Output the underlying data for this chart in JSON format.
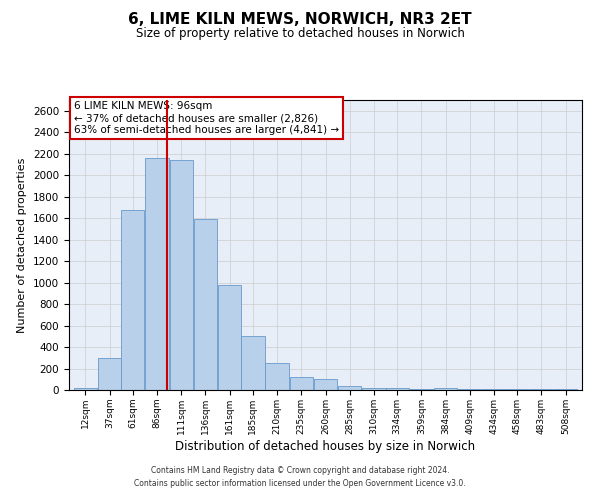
{
  "title": "6, LIME KILN MEWS, NORWICH, NR3 2ET",
  "subtitle": "Size of property relative to detached houses in Norwich",
  "xlabel": "Distribution of detached houses by size in Norwich",
  "ylabel": "Number of detached properties",
  "footer_line1": "Contains HM Land Registry data © Crown copyright and database right 2024.",
  "footer_line2": "Contains public sector information licensed under the Open Government Licence v3.0.",
  "annotation_line1": "6 LIME KILN MEWS: 96sqm",
  "annotation_line2": "← 37% of detached houses are smaller (2,826)",
  "annotation_line3": "63% of semi-detached houses are larger (4,841) →",
  "categories": [
    "12sqm",
    "37sqm",
    "61sqm",
    "86sqm",
    "111sqm",
    "136sqm",
    "161sqm",
    "185sqm",
    "210sqm",
    "235sqm",
    "260sqm",
    "285sqm",
    "310sqm",
    "334sqm",
    "359sqm",
    "384sqm",
    "409sqm",
    "434sqm",
    "458sqm",
    "483sqm",
    "508sqm"
  ],
  "values": [
    20,
    300,
    1680,
    2160,
    2140,
    1590,
    975,
    500,
    248,
    125,
    100,
    35,
    15,
    20,
    5,
    15,
    5,
    5,
    5,
    5,
    5
  ],
  "bar_color": "#b8d0ea",
  "bar_edge_color": "#6699cc",
  "vline_color": "#cc0000",
  "grid_color": "#cccccc",
  "background_color": "#e8eef8",
  "annotation_box_color": "#ffffff",
  "annotation_box_edge": "#cc0000",
  "ylim": [
    0,
    2700
  ],
  "yticks": [
    0,
    200,
    400,
    600,
    800,
    1000,
    1200,
    1400,
    1600,
    1800,
    2000,
    2200,
    2400,
    2600
  ]
}
